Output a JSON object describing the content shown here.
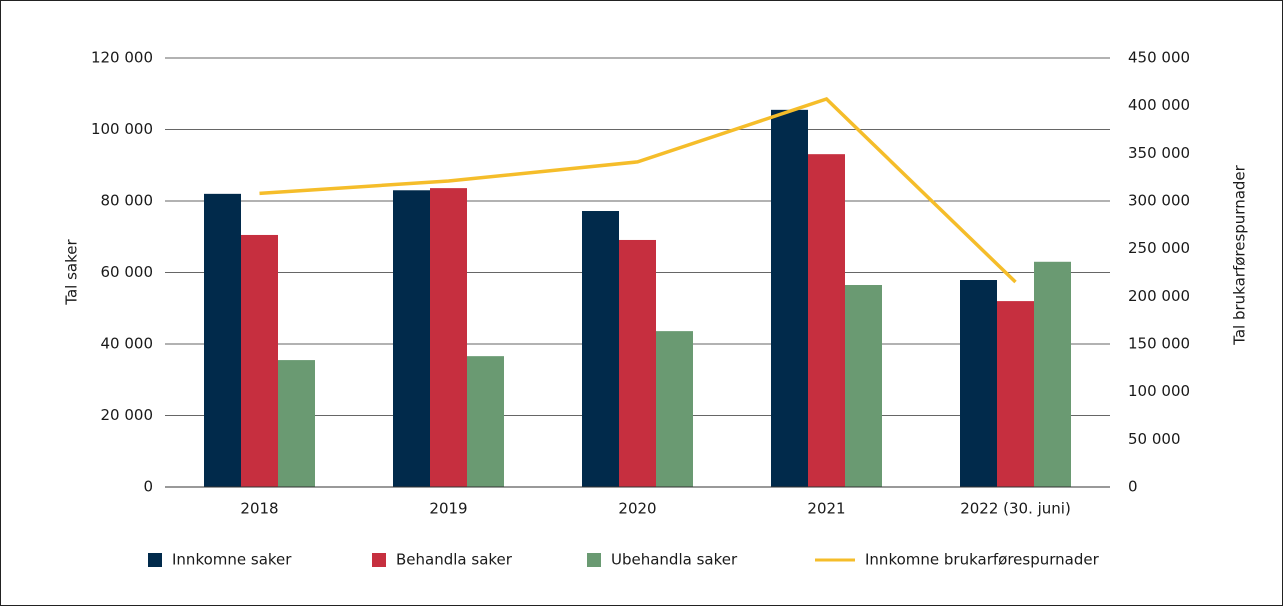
{
  "chart_data": {
    "type": "bar",
    "categories": [
      "2018",
      "2019",
      "2020",
      "2021",
      "2022 (30. juni)"
    ],
    "ylabel": "Tal saker",
    "y2label": "Tal brukarførespurnader",
    "ylim": [
      0,
      120000
    ],
    "yticks": [
      0,
      {
        "value": 20000,
        "label": "20 000"
      },
      {
        "value": 40000,
        "label": "40 000"
      },
      {
        "value": 60000,
        "label": "60 000"
      },
      {
        "value": 80000,
        "label": "80 000"
      },
      {
        "value": 100000,
        "label": "100 000"
      },
      {
        "value": 120000,
        "label": "120 000"
      }
    ],
    "y2lim": [
      0,
      450000
    ],
    "y2ticks": [
      0,
      {
        "value": 50000,
        "label": "50 000"
      },
      {
        "value": 100000,
        "label": "100 000"
      },
      {
        "value": 150000,
        "label": "150 000"
      },
      {
        "value": 200000,
        "label": "200 000"
      },
      {
        "value": 250000,
        "label": "250 000"
      },
      {
        "value": 300000,
        "label": "300 000"
      },
      {
        "value": 350000,
        "label": "350 000"
      },
      {
        "value": 400000,
        "label": "400 000"
      },
      {
        "value": 450000,
        "label": "450 000"
      }
    ],
    "grid": true,
    "legend": "bottom",
    "series": [
      {
        "name": "Innkomne saker",
        "type": "bar",
        "color": "#012a4b",
        "values": [
          82000,
          83000,
          77200,
          105500,
          57900
        ]
      },
      {
        "name": "Behandla saker",
        "type": "bar",
        "color": "#c62f3f",
        "values": [
          70500,
          83600,
          69100,
          93100,
          52000
        ]
      },
      {
        "name": "Ubehandla saker",
        "type": "bar",
        "color": "#6a9a72",
        "values": [
          35500,
          36600,
          43600,
          56500,
          63000
        ]
      },
      {
        "name": "Innkomne brukarførespurnader",
        "type": "line",
        "axis": "y2",
        "color": "#f5bd2a",
        "values": [
          308000,
          321000,
          341000,
          407000,
          215000
        ]
      }
    ]
  }
}
